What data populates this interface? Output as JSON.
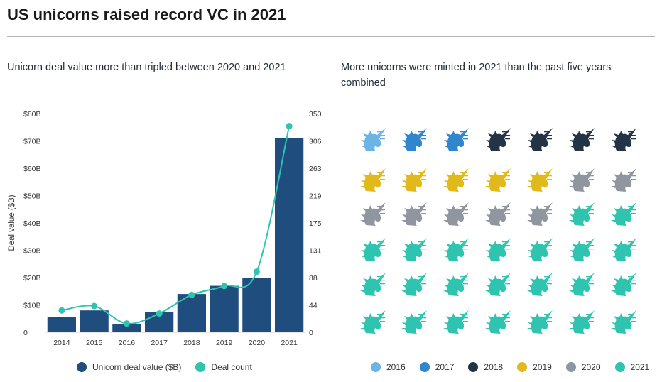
{
  "page": {
    "title": "US unicorns raised record VC in 2021"
  },
  "chart_data": [
    {
      "type": "bar",
      "subtitle": "Unicorn deal value more than tripled between 2020 and 2021",
      "categories": [
        "2014",
        "2015",
        "2016",
        "2017",
        "2018",
        "2019",
        "2020",
        "2021"
      ],
      "series": [
        {
          "name": "Unicorn deal value ($B)",
          "type": "bar",
          "axis": "left",
          "color": "#1f4e7e",
          "values": [
            5.5,
            8,
            3,
            7.5,
            14,
            17,
            20,
            71
          ]
        },
        {
          "name": "Deal count",
          "type": "line",
          "axis": "right",
          "color": "#2ec4b0",
          "values": [
            35,
            42,
            14,
            30,
            60,
            74,
            97,
            330
          ]
        }
      ],
      "ylabel": "Deal value ($B)",
      "ylim": [
        0,
        80
      ],
      "y_ticks": [
        "0",
        "$10B",
        "$20B",
        "$30B",
        "$40B",
        "$50B",
        "$60B",
        "$70B",
        "$80B"
      ],
      "y2lim": [
        0,
        350
      ],
      "y2_ticks": [
        "0",
        "44",
        "88",
        "131",
        "175",
        "219",
        "263",
        "306",
        "350"
      ],
      "legend_position": "bottom",
      "grid": false
    },
    {
      "type": "pictogram",
      "subtitle": "More unicorns were minted in 2021 than the past five years combined",
      "icon": "unicorn-head-icon",
      "columns": 7,
      "categories": [
        "2016",
        "2017",
        "2018",
        "2019",
        "2020",
        "2021"
      ],
      "colors": [
        "#6cb4e6",
        "#2f86cc",
        "#243447",
        "#e1b91b",
        "#8f96a0",
        "#2ec4b0"
      ],
      "values": [
        1,
        2,
        4,
        5,
        7,
        23
      ],
      "legend_position": "bottom"
    }
  ]
}
